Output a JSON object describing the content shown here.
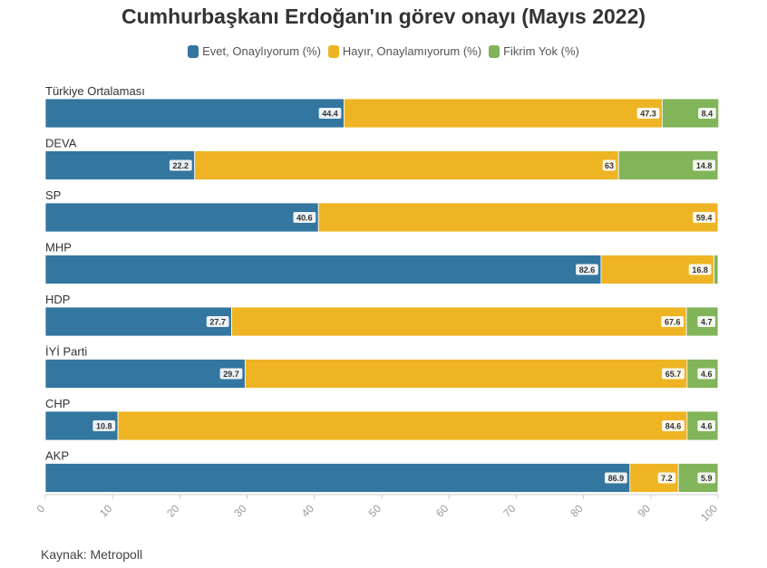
{
  "page": {
    "title": "Cumhurbaşkanı Erdoğan'ın görev onayı (Mayıs 2022)",
    "source": "Kaynak: Metropoll"
  },
  "colors": {
    "evet": "#33769f",
    "hayir": "#eeb423",
    "fikrim_yok": "#82b45a"
  },
  "chart_data": {
    "type": "bar",
    "orientation": "horizontal",
    "stacked": true,
    "title": "Cumhurbaşkanı Erdoğan'ın görev onayı (Mayıs 2022)",
    "categories": [
      "Türkiye Ortalaması",
      "DEVA",
      "SP",
      "MHP",
      "HDP",
      "İYİ Parti",
      "CHP",
      "AKP"
    ],
    "series": [
      {
        "name": "Evet, Onaylıyorum (%)",
        "color": "#33769f",
        "values": [
          44.4,
          22.2,
          40.6,
          82.6,
          27.7,
          29.7,
          10.8,
          86.9
        ]
      },
      {
        "name": "Hayır, Onaylamıyorum (%)",
        "color": "#eeb423",
        "values": [
          47.3,
          63,
          59.4,
          16.8,
          67.6,
          65.7,
          84.6,
          7.2
        ]
      },
      {
        "name": "Fikrim Yok (%)",
        "color": "#82b45a",
        "values": [
          8.4,
          14.8,
          0,
          0.6,
          4.7,
          4.6,
          4.6,
          5.9
        ]
      }
    ],
    "data_labels": [
      [
        "44.4",
        "47.3",
        "8.4"
      ],
      [
        "22.2",
        "63",
        "14.8"
      ],
      [
        "40.6",
        "59.4",
        ""
      ],
      [
        "82.6",
        "16.8",
        ""
      ],
      [
        "27.7",
        "67.6",
        "4.7"
      ],
      [
        "29.7",
        "65.7",
        "4.6"
      ],
      [
        "10.8",
        "84.6",
        "4.6"
      ],
      [
        "86.9",
        "7.2",
        "5.9"
      ]
    ],
    "x_ticks": [
      "0",
      "10",
      "20",
      "30",
      "40",
      "50",
      "60",
      "70",
      "80",
      "90",
      "100"
    ],
    "xlim": [
      0,
      100
    ],
    "grid": false,
    "legend_position": "top"
  }
}
